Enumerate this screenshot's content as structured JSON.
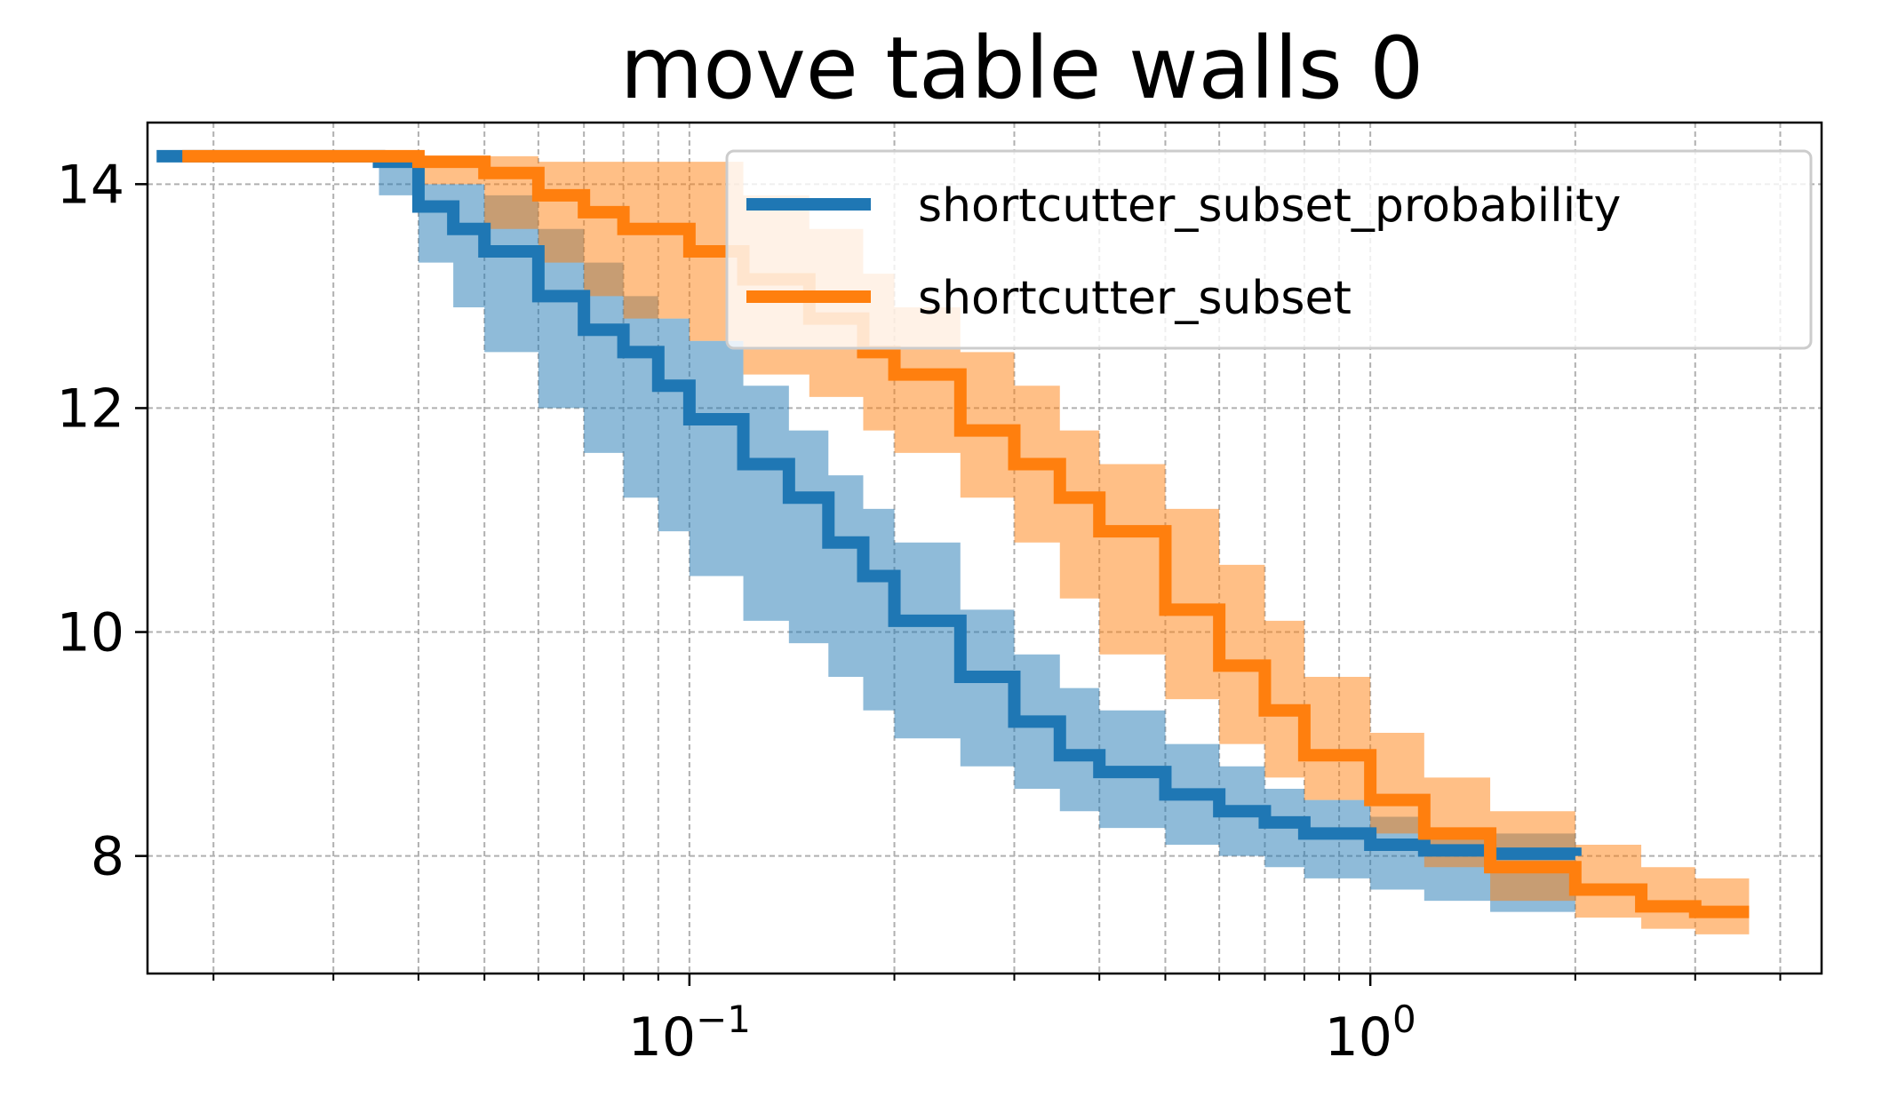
{
  "chart_data": {
    "type": "line",
    "title": "move table walls 0",
    "xlabel": "",
    "ylabel": "",
    "xscale": "log",
    "xlim": [
      0.016,
      4.6
    ],
    "ylim": [
      6.95,
      14.55
    ],
    "grid": true,
    "legend_position": "top-right",
    "x_tick_labels": [
      {
        "x": 0.1,
        "base": "10",
        "exp": "−1"
      },
      {
        "x": 1,
        "base": "10",
        "exp": "0"
      }
    ],
    "y_ticks": [
      8,
      10,
      12,
      14
    ],
    "y_tick_labels": [
      "8",
      "10",
      "12",
      "14"
    ],
    "series": [
      {
        "name": "shortcutter_subset_probability",
        "color": "#1f77b4",
        "band_color": "#1f77b4",
        "x": [
          0.0165,
          0.035,
          0.04,
          0.045,
          0.05,
          0.06,
          0.07,
          0.08,
          0.09,
          0.1,
          0.12,
          0.14,
          0.16,
          0.18,
          0.2,
          0.25,
          0.3,
          0.35,
          0.4,
          0.5,
          0.6,
          0.7,
          0.8,
          1.0,
          1.2,
          1.5,
          2.0
        ],
        "y": [
          14.25,
          14.2,
          13.8,
          13.6,
          13.4,
          13.0,
          12.7,
          12.5,
          12.2,
          11.9,
          11.5,
          11.2,
          10.8,
          10.5,
          10.1,
          9.6,
          9.2,
          8.9,
          8.75,
          8.55,
          8.4,
          8.3,
          8.2,
          8.1,
          8.05,
          8.02,
          8.0
        ],
        "lower": [
          14.25,
          13.9,
          13.3,
          12.9,
          12.5,
          12.0,
          11.6,
          11.2,
          10.9,
          10.5,
          10.1,
          9.9,
          9.6,
          9.3,
          9.05,
          8.8,
          8.6,
          8.4,
          8.25,
          8.1,
          8.0,
          7.9,
          7.8,
          7.7,
          7.6,
          7.5,
          7.45
        ],
        "upper": [
          14.25,
          14.25,
          14.0,
          14.0,
          13.9,
          13.6,
          13.3,
          13.0,
          12.8,
          12.6,
          12.2,
          11.8,
          11.4,
          11.1,
          10.8,
          10.2,
          9.8,
          9.5,
          9.3,
          9.0,
          8.8,
          8.6,
          8.5,
          8.35,
          8.25,
          8.2,
          8.2
        ]
      },
      {
        "name": "shortcutter_subset",
        "color": "#ff7f0e",
        "band_color": "#ff7f0e",
        "x": [
          0.018,
          0.035,
          0.04,
          0.05,
          0.06,
          0.07,
          0.08,
          0.1,
          0.12,
          0.15,
          0.18,
          0.2,
          0.25,
          0.3,
          0.35,
          0.4,
          0.5,
          0.6,
          0.7,
          0.8,
          1.0,
          1.2,
          1.5,
          2.0,
          2.5,
          3.0,
          3.6
        ],
        "y": [
          14.25,
          14.25,
          14.2,
          14.1,
          13.9,
          13.75,
          13.6,
          13.4,
          13.15,
          12.8,
          12.5,
          12.3,
          11.8,
          11.5,
          11.2,
          10.9,
          10.2,
          9.7,
          9.3,
          8.9,
          8.5,
          8.2,
          7.9,
          7.7,
          7.55,
          7.5,
          7.5
        ],
        "lower": [
          14.25,
          14.2,
          14.0,
          13.6,
          13.3,
          13.0,
          12.8,
          12.6,
          12.3,
          12.1,
          11.8,
          11.6,
          11.2,
          10.8,
          10.3,
          9.8,
          9.4,
          9.0,
          8.7,
          8.5,
          8.2,
          7.9,
          7.6,
          7.45,
          7.35,
          7.3,
          7.3
        ],
        "upper": [
          14.25,
          14.25,
          14.25,
          14.25,
          14.2,
          14.2,
          14.2,
          14.2,
          13.9,
          13.6,
          13.2,
          12.9,
          12.5,
          12.2,
          11.8,
          11.5,
          11.1,
          10.6,
          10.1,
          9.6,
          9.1,
          8.7,
          8.4,
          8.1,
          7.9,
          7.8,
          7.8
        ]
      }
    ]
  }
}
